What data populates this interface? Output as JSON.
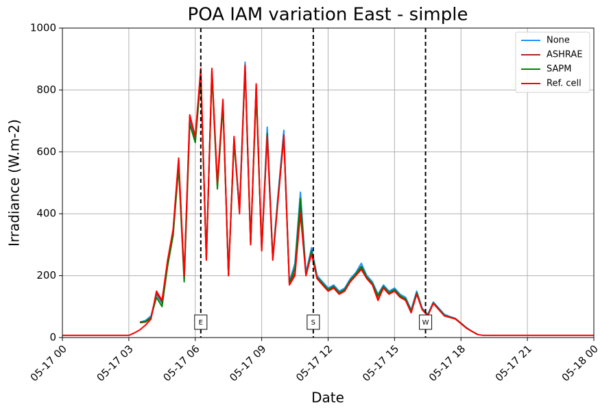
{
  "chart_data": {
    "type": "line",
    "title": "POA IAM variation East - simple",
    "x_label": "Date",
    "y_label": "Irradiance (W.m-2)",
    "x": [
      0,
      3,
      3.25,
      3.5,
      3.75,
      4,
      4.25,
      4.5,
      4.75,
      5,
      5.25,
      5.5,
      5.75,
      6,
      6.25,
      6.5,
      6.75,
      7,
      7.25,
      7.5,
      7.75,
      8,
      8.25,
      8.5,
      8.75,
      9,
      9.25,
      9.5,
      9.75,
      10,
      10.25,
      10.5,
      10.75,
      11,
      11.25,
      11.5,
      11.75,
      12,
      12.25,
      12.5,
      12.75,
      13,
      13.25,
      13.5,
      13.75,
      14,
      14.25,
      14.5,
      14.75,
      15,
      15.25,
      15.5,
      15.75,
      16,
      16.25,
      16.5,
      16.75,
      17,
      17.25,
      17.5,
      17.75,
      18,
      18.25,
      18.5,
      18.75,
      19,
      19.25,
      24
    ],
    "series": [
      {
        "name": "None",
        "color": "#1e90ff",
        "values": [
          null,
          null,
          null,
          50,
          55,
          70,
          140,
          110,
          240,
          340,
          560,
          190,
          700,
          640,
          850,
          260,
          860,
          490,
          760,
          210,
          640,
          420,
          890,
          310,
          800,
          290,
          680,
          260,
          470,
          670,
          180,
          240,
          470,
          210,
          290,
          200,
          180,
          160,
          170,
          150,
          160,
          190,
          210,
          240,
          200,
          180,
          140,
          170,
          150,
          160,
          140,
          130,
          90,
          150,
          95,
          75,
          115,
          95,
          75,
          68,
          62,
          47,
          32,
          20,
          10,
          null,
          null,
          null
        ]
      },
      {
        "name": "ASHRAE",
        "color": "#b22222",
        "values": [
          null,
          null,
          null,
          48,
          50,
          62,
          145,
          115,
          245,
          345,
          575,
          195,
          715,
          645,
          865,
          252,
          865,
          495,
          765,
          200,
          645,
          405,
          875,
          300,
          815,
          282,
          655,
          252,
          455,
          655,
          172,
          210,
          420,
          202,
          275,
          192,
          172,
          152,
          162,
          142,
          152,
          182,
          202,
          225,
          192,
          172,
          125,
          162,
          142,
          152,
          132,
          122,
          82,
          142,
          91,
          71,
          111,
          91,
          71,
          66,
          61,
          46,
          31,
          20,
          10,
          null,
          null,
          null
        ]
      },
      {
        "name": "SAPM",
        "color": "#008000",
        "values": [
          null,
          null,
          null,
          50,
          52,
          65,
          130,
          100,
          230,
          330,
          550,
          180,
          690,
          630,
          840,
          255,
          850,
          480,
          750,
          200,
          630,
          410,
          870,
          300,
          790,
          285,
          660,
          255,
          460,
          650,
          175,
          225,
          450,
          200,
          280,
          195,
          175,
          155,
          165,
          145,
          155,
          185,
          205,
          230,
          195,
          175,
          135,
          165,
          145,
          155,
          135,
          125,
          85,
          145,
          92,
          72,
          112,
          92,
          72,
          66,
          60,
          46,
          31,
          20,
          10,
          null,
          null,
          null
        ]
      },
      {
        "name": "Ref. cell",
        "color": "#ff0000",
        "values": [
          7,
          7,
          15,
          25,
          40,
          60,
          150,
          120,
          250,
          350,
          580,
          200,
          720,
          650,
          870,
          250,
          870,
          500,
          770,
          200,
          650,
          400,
          880,
          300,
          820,
          280,
          650,
          250,
          450,
          650,
          170,
          200,
          400,
          200,
          270,
          190,
          170,
          150,
          160,
          140,
          150,
          180,
          200,
          220,
          190,
          170,
          120,
          160,
          140,
          150,
          130,
          120,
          80,
          140,
          90,
          70,
          110,
          90,
          70,
          65,
          60,
          45,
          30,
          20,
          10,
          7,
          7,
          7
        ]
      }
    ],
    "xlim": [
      0,
      24
    ],
    "xticks": [
      {
        "value": 0,
        "label": "05-17 00"
      },
      {
        "value": 3,
        "label": "05-17 03"
      },
      {
        "value": 6,
        "label": "05-17 06"
      },
      {
        "value": 9,
        "label": "05-17 09"
      },
      {
        "value": 12,
        "label": "05-17 12"
      },
      {
        "value": 15,
        "label": "05-17 15"
      },
      {
        "value": 18,
        "label": "05-17 18"
      },
      {
        "value": 21,
        "label": "05-17 21"
      },
      {
        "value": 24,
        "label": "05-18 00"
      }
    ],
    "ylim": [
      0,
      1000
    ],
    "yticks": [
      0,
      200,
      400,
      600,
      800,
      1000
    ],
    "grid": true,
    "legend": "upper right",
    "vlines": [
      {
        "x": 6.25,
        "label": "E"
      },
      {
        "x": 11.33,
        "label": "S"
      },
      {
        "x": 16.4,
        "label": "W"
      }
    ]
  }
}
